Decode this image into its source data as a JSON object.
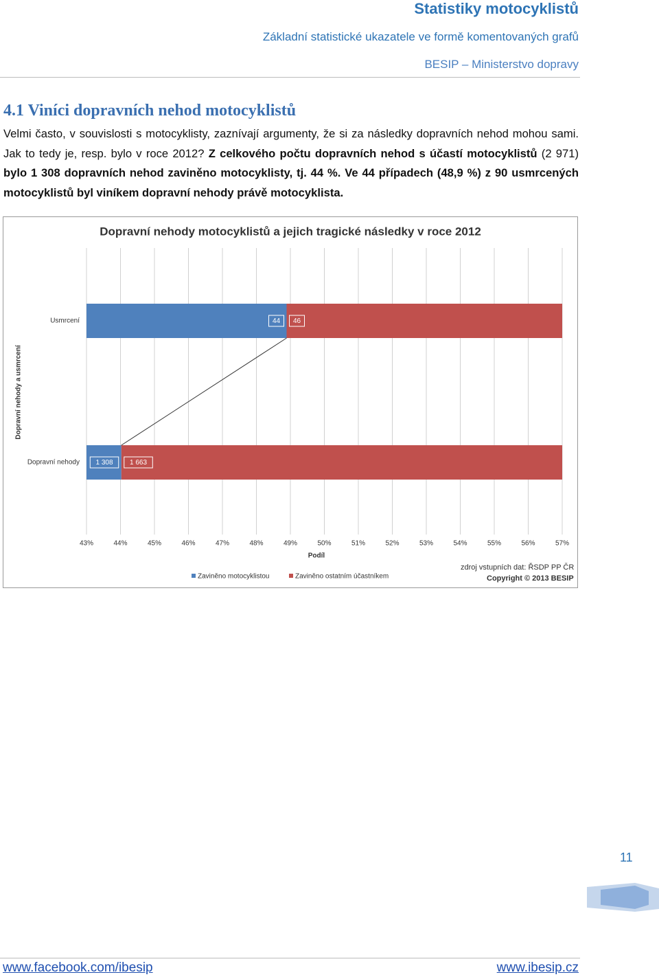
{
  "header": {
    "title": "Statistiky motocyklistů",
    "subtitle": "Základní statistické ukazatele ve formě komentovaných grafů",
    "publisher": "BESIP – Ministerstvo dopravy"
  },
  "heading": "4.1 Viníci dopravních nehod motocyklistů",
  "paragraph": [
    {
      "text": "Velmi často, v souvislosti s motocyklisty, zaznívají argumenty, že si za následky dopravních nehod mohou sami. Jak to tedy je, resp. bylo v roce 2012? ",
      "bold": false
    },
    {
      "text": "Z celkového počtu dopravních nehod s účastí motocyklistů",
      "bold": true
    },
    {
      "text": " (2 971) ",
      "bold": false
    },
    {
      "text": "bylo 1 308 dopravních nehod zaviněno motocyklisty, tj. 44 %. Ve 44 případech (48,9 %) z 90 usmrcených motocyklistů byl viníkem dopravní nehody právě motocyklista.",
      "bold": true
    }
  ],
  "chart_data": {
    "type": "stacked_percent_barh",
    "title": "Dopravní nehody motocyklistů a jejich tragické následky v roce 2012",
    "categories": [
      "Usmrcení",
      "Dopravní nehody"
    ],
    "series": [
      {
        "name": "Zaviněno motocyklistou",
        "color": "#4f81bd",
        "values": [
          44,
          1308
        ],
        "value_labels": [
          "44",
          "1 308"
        ]
      },
      {
        "name": "Zaviněno ostatním účastníkem",
        "color": "#c0504d",
        "values": [
          46,
          1663
        ],
        "value_labels": [
          "46",
          "1 663"
        ]
      }
    ],
    "xlim": [
      43,
      57
    ],
    "xticks": [
      {
        "value": 43,
        "label": "43%"
      },
      {
        "value": 44,
        "label": "44%"
      },
      {
        "value": 45,
        "label": "45%"
      },
      {
        "value": 46,
        "label": "46%"
      },
      {
        "value": 47,
        "label": "47%"
      },
      {
        "value": 48,
        "label": "48%"
      },
      {
        "value": 49,
        "label": "49%"
      },
      {
        "value": 50,
        "label": "50%"
      },
      {
        "value": 51,
        "label": "51%"
      },
      {
        "value": 52,
        "label": "52%"
      },
      {
        "value": 53,
        "label": "53%"
      },
      {
        "value": 54,
        "label": "54%"
      },
      {
        "value": 55,
        "label": "55%"
      },
      {
        "value": 56,
        "label": "56%"
      },
      {
        "value": 57,
        "label": "57%"
      }
    ],
    "xlabel": "Podíl",
    "ylabel": "Dopravní nehody a usmrcení",
    "grid": true,
    "annotations": [
      "zdroj vstupních dat: ŘSDP PP ČR",
      "Copyright © 2013 BESIP"
    ]
  },
  "page_number": "11",
  "footer": {
    "left": "www.facebook.com/ibesip",
    "right": "www.ibesip.cz"
  }
}
